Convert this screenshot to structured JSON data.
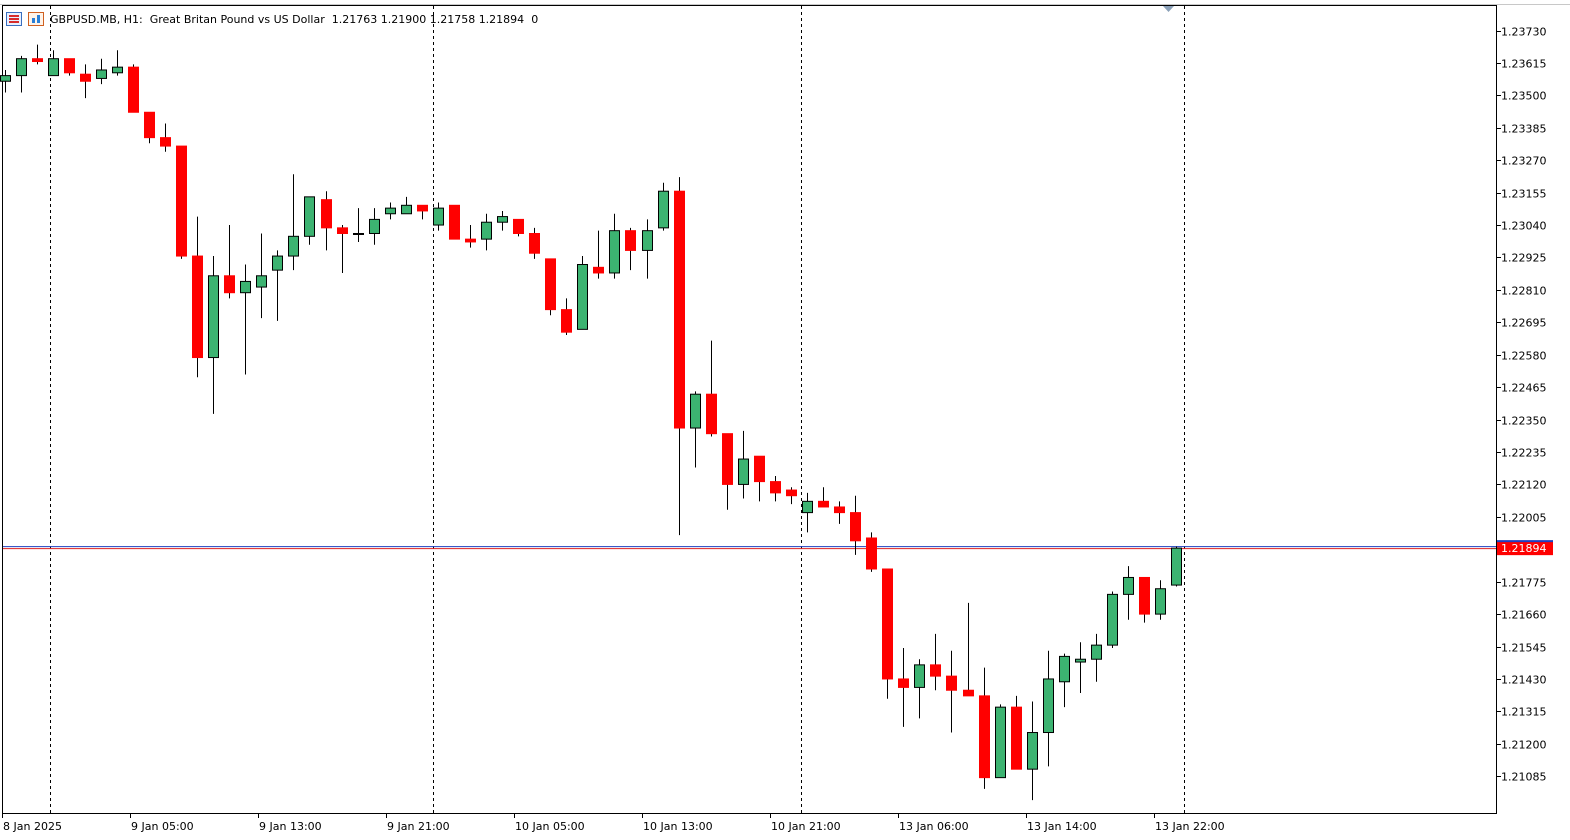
{
  "header": {
    "symbol": "GBPUSD.MB, H1:",
    "description": "Great Britan Pound vs US Dollar",
    "ohlc": "1.21763 1.21900 1.21758 1.21894",
    "extra": "0",
    "icons": [
      "list-icon",
      "chart-icon"
    ]
  },
  "colors": {
    "bull": "#3cb371",
    "bear": "#ff0000",
    "outline": "#000000",
    "grid": "#000000",
    "current_line": "#1f3fbf",
    "current_label_bg": "#ff0000"
  },
  "current_price": {
    "value": 1.21894,
    "label": "1.21894"
  },
  "price_axis": {
    "ticks": [
      "1.23730",
      "1.23615",
      "1.23500",
      "1.23385",
      "1.23270",
      "1.23155",
      "1.23040",
      "1.22925",
      "1.22810",
      "1.22695",
      "1.22580",
      "1.22465",
      "1.22350",
      "1.22235",
      "1.22120",
      "1.22005",
      "1.21775",
      "1.21660",
      "1.21545",
      "1.21430",
      "1.21315",
      "1.21200",
      "1.21085"
    ]
  },
  "time_axis": {
    "labels": [
      "8 Jan 2025",
      "9 Jan 05:00",
      "9 Jan 13:00",
      "9 Jan 21:00",
      "10 Jan 05:00",
      "10 Jan 13:00",
      "10 Jan 21:00",
      "13 Jan 06:00",
      "13 Jan 14:00",
      "13 Jan 22:00"
    ],
    "separators": [
      "8 Jan 2025 +2",
      "9 Jan 21:00",
      "10 Jan 21:00",
      "13 Jan 22:00"
    ]
  },
  "chart_data": {
    "type": "candlestick",
    "title": "GBPUSD.MB, H1",
    "timeframe": "H1",
    "ylim": [
      1.2103,
      1.238
    ],
    "grid": false,
    "candles": [
      {
        "o": 1.2355,
        "h": 1.2359,
        "l": 1.2351,
        "c": 1.2357
      },
      {
        "o": 1.2357,
        "h": 1.2364,
        "l": 1.2351,
        "c": 1.2363
      },
      {
        "o": 1.2363,
        "h": 1.2368,
        "l": 1.2361,
        "c": 1.2362
      },
      {
        "o": 1.2357,
        "h": 1.2366,
        "l": 1.2357,
        "c": 1.2363
      },
      {
        "o": 1.2363,
        "h": 1.2363,
        "l": 1.2357,
        "c": 1.2358
      },
      {
        "o": 1.23575,
        "h": 1.2361,
        "l": 1.2349,
        "c": 1.2355
      },
      {
        "o": 1.2356,
        "h": 1.2363,
        "l": 1.2354,
        "c": 1.2359
      },
      {
        "o": 1.2358,
        "h": 1.2366,
        "l": 1.2357,
        "c": 1.236
      },
      {
        "o": 1.236,
        "h": 1.2361,
        "l": 1.2344,
        "c": 1.2344
      },
      {
        "o": 1.2344,
        "h": 1.2344,
        "l": 1.2333,
        "c": 1.2335
      },
      {
        "o": 1.2335,
        "h": 1.234,
        "l": 1.233,
        "c": 1.2332
      },
      {
        "o": 1.2332,
        "h": 1.2332,
        "l": 1.2292,
        "c": 1.2293
      },
      {
        "o": 1.2293,
        "h": 1.2307,
        "l": 1.225,
        "c": 1.2257
      },
      {
        "o": 1.2257,
        "h": 1.2293,
        "l": 1.2237,
        "c": 1.2286
      },
      {
        "o": 1.2286,
        "h": 1.2304,
        "l": 1.2278,
        "c": 1.228
      },
      {
        "o": 1.228,
        "h": 1.229,
        "l": 1.2251,
        "c": 1.2284
      },
      {
        "o": 1.2282,
        "h": 1.2301,
        "l": 1.2271,
        "c": 1.2286
      },
      {
        "o": 1.2288,
        "h": 1.2295,
        "l": 1.227,
        "c": 1.2293
      },
      {
        "o": 1.2293,
        "h": 1.2322,
        "l": 1.2288,
        "c": 1.23
      },
      {
        "o": 1.23,
        "h": 1.2314,
        "l": 1.2297,
        "c": 1.2314
      },
      {
        "o": 1.2313,
        "h": 1.2316,
        "l": 1.2295,
        "c": 1.2303
      },
      {
        "o": 1.2303,
        "h": 1.2304,
        "l": 1.2287,
        "c": 1.2301
      },
      {
        "o": 1.2301,
        "h": 1.231,
        "l": 1.2298,
        "c": 1.2301
      },
      {
        "o": 1.2301,
        "h": 1.231,
        "l": 1.2297,
        "c": 1.2306
      },
      {
        "o": 1.2308,
        "h": 1.2312,
        "l": 1.2306,
        "c": 1.231
      },
      {
        "o": 1.2308,
        "h": 1.2314,
        "l": 1.2308,
        "c": 1.2311
      },
      {
        "o": 1.2311,
        "h": 1.2311,
        "l": 1.2306,
        "c": 1.2309
      },
      {
        "o": 1.2304,
        "h": 1.2312,
        "l": 1.2302,
        "c": 1.231
      },
      {
        "o": 1.2311,
        "h": 1.2311,
        "l": 1.2299,
        "c": 1.2299
      },
      {
        "o": 1.2299,
        "h": 1.2304,
        "l": 1.2296,
        "c": 1.2298
      },
      {
        "o": 1.2299,
        "h": 1.2308,
        "l": 1.2295,
        "c": 1.2305
      },
      {
        "o": 1.2305,
        "h": 1.2309,
        "l": 1.2302,
        "c": 1.2307
      },
      {
        "o": 1.2306,
        "h": 1.2306,
        "l": 1.23,
        "c": 1.2301
      },
      {
        "o": 1.2301,
        "h": 1.2303,
        "l": 1.2292,
        "c": 1.2294
      },
      {
        "o": 1.2292,
        "h": 1.2292,
        "l": 1.2272,
        "c": 1.2274
      },
      {
        "o": 1.2274,
        "h": 1.2278,
        "l": 1.2265,
        "c": 1.2266
      },
      {
        "o": 1.2267,
        "h": 1.2293,
        "l": 1.2267,
        "c": 1.229
      },
      {
        "o": 1.2289,
        "h": 1.2302,
        "l": 1.2285,
        "c": 1.2287
      },
      {
        "o": 1.2287,
        "h": 1.2308,
        "l": 1.2285,
        "c": 1.2302
      },
      {
        "o": 1.2302,
        "h": 1.2303,
        "l": 1.2288,
        "c": 1.2295
      },
      {
        "o": 1.2295,
        "h": 1.2306,
        "l": 1.2285,
        "c": 1.2302
      },
      {
        "o": 1.2303,
        "h": 1.2319,
        "l": 1.2302,
        "c": 1.2316
      },
      {
        "o": 1.2316,
        "h": 1.2321,
        "l": 1.2194,
        "c": 1.2232
      },
      {
        "o": 1.2232,
        "h": 1.2245,
        "l": 1.2218,
        "c": 1.2244
      },
      {
        "o": 1.2244,
        "h": 1.2263,
        "l": 1.2229,
        "c": 1.223
      },
      {
        "o": 1.223,
        "h": 1.223,
        "l": 1.2203,
        "c": 1.2212
      },
      {
        "o": 1.2212,
        "h": 1.2231,
        "l": 1.2207,
        "c": 1.2221
      },
      {
        "o": 1.2222,
        "h": 1.2222,
        "l": 1.2206,
        "c": 1.2213
      },
      {
        "o": 1.2213,
        "h": 1.2215,
        "l": 1.2206,
        "c": 1.2209
      },
      {
        "o": 1.221,
        "h": 1.2211,
        "l": 1.2205,
        "c": 1.2208
      },
      {
        "o": 1.2202,
        "h": 1.2209,
        "l": 1.2195,
        "c": 1.2206
      },
      {
        "o": 1.2206,
        "h": 1.2211,
        "l": 1.2204,
        "c": 1.2204
      },
      {
        "o": 1.2204,
        "h": 1.2206,
        "l": 1.2198,
        "c": 1.2202
      },
      {
        "o": 1.2202,
        "h": 1.2208,
        "l": 1.2187,
        "c": 1.2192
      },
      {
        "o": 1.2193,
        "h": 1.2195,
        "l": 1.2181,
        "c": 1.2182
      },
      {
        "o": 1.2182,
        "h": 1.2182,
        "l": 1.2136,
        "c": 1.2143
      },
      {
        "o": 1.2143,
        "h": 1.2154,
        "l": 1.2126,
        "c": 1.214
      },
      {
        "o": 1.214,
        "h": 1.215,
        "l": 1.2129,
        "c": 1.2148
      },
      {
        "o": 1.2148,
        "h": 1.2159,
        "l": 1.2139,
        "c": 1.2144
      },
      {
        "o": 1.2144,
        "h": 1.2153,
        "l": 1.2124,
        "c": 1.2139
      },
      {
        "o": 1.2139,
        "h": 1.217,
        "l": 1.2137,
        "c": 1.2137
      },
      {
        "o": 1.2137,
        "h": 1.2147,
        "l": 1.2104,
        "c": 1.2108
      },
      {
        "o": 1.2108,
        "h": 1.2134,
        "l": 1.2108,
        "c": 1.2133
      },
      {
        "o": 1.2133,
        "h": 1.2137,
        "l": 1.2111,
        "c": 1.2111
      },
      {
        "o": 1.2111,
        "h": 1.2135,
        "l": 1.21,
        "c": 1.2124
      },
      {
        "o": 1.2124,
        "h": 1.2153,
        "l": 1.2112,
        "c": 1.2143
      },
      {
        "o": 1.2142,
        "h": 1.2152,
        "l": 1.2133,
        "c": 1.2151
      },
      {
        "o": 1.2149,
        "h": 1.2156,
        "l": 1.2138,
        "c": 1.215
      },
      {
        "o": 1.215,
        "h": 1.2159,
        "l": 1.2142,
        "c": 1.2155
      },
      {
        "o": 1.2155,
        "h": 1.2174,
        "l": 1.2154,
        "c": 1.2173
      },
      {
        "o": 1.2173,
        "h": 1.2183,
        "l": 1.2164,
        "c": 1.2179
      },
      {
        "o": 1.2179,
        "h": 1.2179,
        "l": 1.2163,
        "c": 1.2166
      },
      {
        "o": 1.2166,
        "h": 1.2178,
        "l": 1.2164,
        "c": 1.2175
      },
      {
        "o": 1.21763,
        "h": 1.219,
        "l": 1.21758,
        "c": 1.21894
      }
    ]
  }
}
